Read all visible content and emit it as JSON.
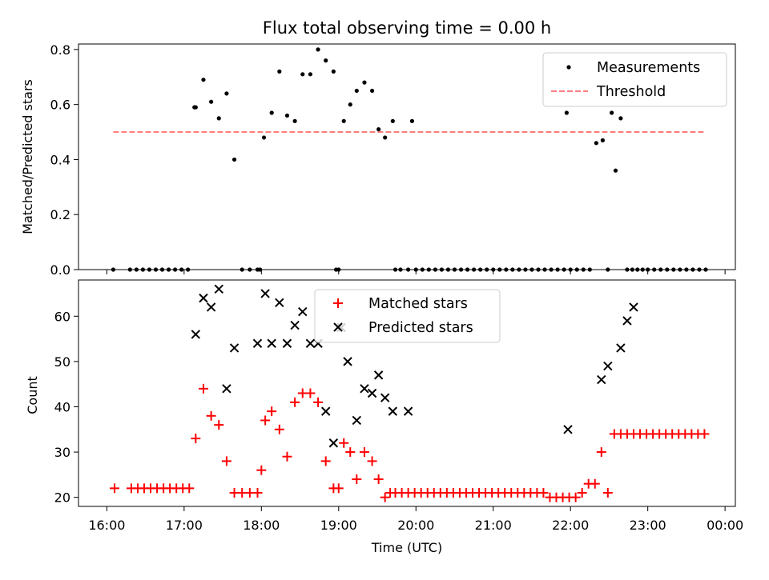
{
  "chart_data": [
    {
      "type": "scatter",
      "title": "Flux total observing time = 0.00 h",
      "ylabel": "Matched/Predicted stars",
      "xlim": [
        "16:00",
        "00:00"
      ],
      "ylim": [
        0,
        0.82
      ],
      "yticks": [
        "0.0",
        "0.2",
        "0.4",
        "0.6",
        "0.8"
      ],
      "legend_position": "upper-right",
      "series": [
        {
          "name": "Measurements",
          "marker": "dot",
          "color": "#000000",
          "x": [
            "16:05",
            "16:18",
            "16:23",
            "16:28",
            "16:33",
            "16:38",
            "16:43",
            "16:48",
            "16:53",
            "16:58",
            "17:03",
            "17:08",
            "17:09",
            "17:15",
            "17:21",
            "17:27",
            "17:33",
            "17:39",
            "17:45",
            "17:51",
            "17:57",
            "17:59",
            "18:02",
            "18:08",
            "18:14",
            "18:20",
            "18:26",
            "18:32",
            "18:38",
            "18:44",
            "18:50",
            "18:56",
            "18:58",
            "19:00",
            "19:04",
            "19:09",
            "19:14",
            "19:20",
            "19:26",
            "19:31",
            "19:36",
            "19:42",
            "19:44",
            "19:48",
            "19:54",
            "19:57",
            "20:00",
            "20:05",
            "20:10",
            "20:15",
            "20:20",
            "20:25",
            "20:30",
            "20:35",
            "20:40",
            "20:45",
            "20:50",
            "20:55",
            "21:00",
            "21:05",
            "21:10",
            "21:15",
            "21:20",
            "21:25",
            "21:30",
            "21:35",
            "21:40",
            "21:45",
            "21:50",
            "21:55",
            "21:57",
            "22:00",
            "22:05",
            "22:10",
            "22:15",
            "22:20",
            "22:25",
            "22:29",
            "22:32",
            "22:35",
            "22:39",
            "22:44",
            "22:48",
            "22:52",
            "22:56",
            "23:00",
            "23:05",
            "23:10",
            "23:15",
            "23:20",
            "23:25",
            "23:30",
            "23:35",
            "23:40",
            "23:45"
          ],
          "y": [
            0,
            0,
            0,
            0,
            0,
            0,
            0,
            0,
            0,
            0,
            0,
            0.59,
            0.59,
            0.69,
            0.61,
            0.55,
            0.64,
            0.4,
            0,
            0,
            0,
            0,
            0.48,
            0.57,
            0.72,
            0.56,
            0.54,
            0.71,
            0.71,
            0.8,
            0.76,
            0.72,
            0,
            0,
            0.54,
            0.6,
            0.65,
            0.68,
            0.65,
            0.51,
            0.48,
            0.54,
            0,
            0,
            0,
            0.54,
            0,
            0,
            0,
            0,
            0,
            0,
            0,
            0,
            0,
            0,
            0,
            0,
            0,
            0,
            0,
            0,
            0,
            0,
            0,
            0,
            0,
            0,
            0,
            0,
            0.57,
            0,
            0,
            0,
            0,
            0.46,
            0.47,
            0,
            0.57,
            0.36,
            0.55,
            0,
            0,
            0,
            0,
            0,
            0,
            0,
            0,
            0,
            0,
            0,
            0,
            0,
            0
          ]
        },
        {
          "name": "Threshold",
          "style": "dashed",
          "color": "#ff7f7f",
          "x": [
            "16:05",
            "23:45"
          ],
          "y": [
            0.5,
            0.5
          ]
        }
      ]
    },
    {
      "type": "scatter",
      "xlabel": "Time (UTC)",
      "ylabel": "Count",
      "xlim": [
        "16:00",
        "00:00"
      ],
      "ylim": [
        18,
        68
      ],
      "xticks": [
        "16:00",
        "17:00",
        "18:00",
        "19:00",
        "20:00",
        "21:00",
        "22:00",
        "23:00",
        "00:00"
      ],
      "yticks": [
        "20",
        "30",
        "40",
        "50",
        "60"
      ],
      "legend_position": "upper-center",
      "series": [
        {
          "name": "Matched stars",
          "marker": "plus",
          "color": "#ff0000",
          "x": [
            "16:06",
            "16:19",
            "16:24",
            "16:29",
            "16:34",
            "16:39",
            "16:44",
            "16:49",
            "16:54",
            "16:59",
            "17:04",
            "17:09",
            "17:15",
            "17:21",
            "17:27",
            "17:33",
            "17:39",
            "17:45",
            "17:51",
            "17:57",
            "18:00",
            "18:03",
            "18:08",
            "18:14",
            "18:20",
            "18:26",
            "18:32",
            "18:38",
            "18:44",
            "18:50",
            "18:56",
            "19:00",
            "19:04",
            "19:09",
            "19:14",
            "19:20",
            "19:26",
            "19:31",
            "19:36",
            "19:40",
            "19:44",
            "19:49",
            "19:54",
            "19:59",
            "20:04",
            "20:09",
            "20:14",
            "20:19",
            "20:24",
            "20:29",
            "20:34",
            "20:39",
            "20:44",
            "20:49",
            "20:54",
            "20:59",
            "21:04",
            "21:09",
            "21:14",
            "21:19",
            "21:24",
            "21:29",
            "21:34",
            "21:39",
            "21:44",
            "21:49",
            "21:54",
            "21:59",
            "22:04",
            "22:09",
            "22:14",
            "22:19",
            "22:24",
            "22:29",
            "22:34",
            "22:39",
            "22:44",
            "22:49",
            "22:54",
            "22:59",
            "23:04",
            "23:09",
            "23:14",
            "23:19",
            "23:24",
            "23:29",
            "23:34",
            "23:39",
            "23:44"
          ],
          "y": [
            22,
            22,
            22,
            22,
            22,
            22,
            22,
            22,
            22,
            22,
            22,
            33,
            44,
            38,
            36,
            28,
            21,
            21,
            21,
            21,
            26,
            37,
            39,
            35,
            29,
            41,
            43,
            43,
            41,
            28,
            22,
            22,
            32,
            30,
            24,
            30,
            28,
            24,
            20,
            21,
            21,
            21,
            21,
            21,
            21,
            21,
            21,
            21,
            21,
            21,
            21,
            21,
            21,
            21,
            21,
            21,
            21,
            21,
            21,
            21,
            21,
            21,
            21,
            21,
            20,
            20,
            20,
            20,
            20,
            21,
            23,
            23,
            30,
            21,
            34,
            34,
            34,
            34,
            34,
            34,
            34,
            34,
            34,
            34,
            34,
            34,
            34,
            34,
            34
          ]
        },
        {
          "name": "Predicted stars",
          "marker": "x",
          "color": "#000000",
          "x": [
            "17:09",
            "17:15",
            "17:21",
            "17:27",
            "17:33",
            "17:39",
            "17:57",
            "18:03",
            "18:08",
            "18:14",
            "18:20",
            "18:26",
            "18:32",
            "18:38",
            "18:44",
            "18:50",
            "18:56",
            "19:02",
            "19:07",
            "19:14",
            "19:20",
            "19:26",
            "19:31",
            "19:36",
            "19:42",
            "19:54",
            "21:58",
            "22:24",
            "22:29",
            "22:39",
            "22:44",
            "22:49"
          ],
          "y": [
            56,
            64,
            62,
            66,
            44,
            53,
            54,
            65,
            54,
            63,
            54,
            58,
            61,
            54,
            54,
            39,
            32,
            57.5,
            50,
            37,
            44,
            43,
            47,
            42,
            39,
            39,
            35,
            46,
            49,
            53,
            59,
            62
          ]
        }
      ]
    }
  ]
}
